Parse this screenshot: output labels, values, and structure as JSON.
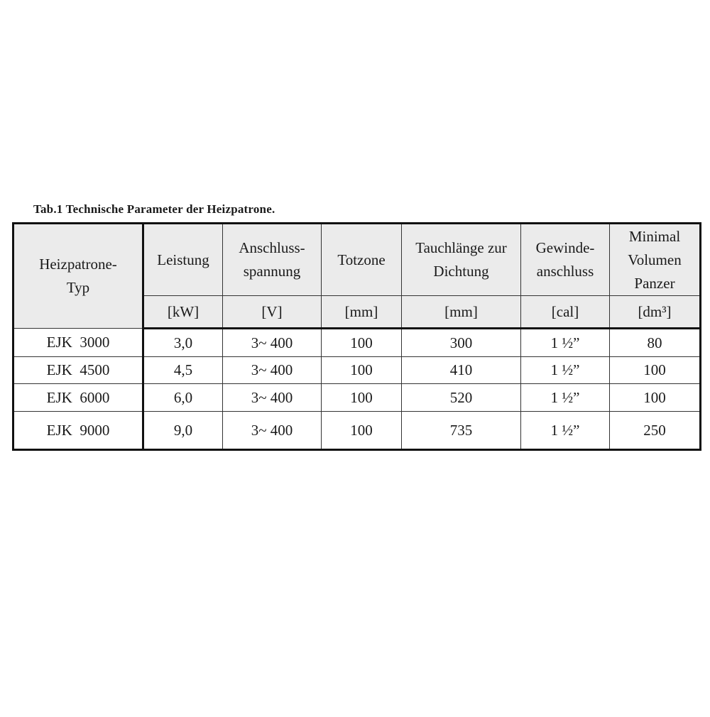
{
  "title": "Tab.1 Technische Parameter der Heizpatrone.",
  "headers": [
    {
      "name": "Heizpatrone-Typ",
      "unit": ""
    },
    {
      "name": "Leistung",
      "unit": "[kW]"
    },
    {
      "name": "Anschluss-spannung",
      "unit": "[V]"
    },
    {
      "name": "Totzone",
      "unit": "[mm]"
    },
    {
      "name": "Tauchlänge zur Dichtung",
      "unit": "[mm]"
    },
    {
      "name": "Gewinde-anschluss",
      "unit": "[cal]"
    },
    {
      "name": "Minimal Volumen Panzer",
      "unit": "[dm³]"
    }
  ],
  "rows": [
    [
      "EJK  3000",
      "3,0",
      "3~ 400",
      "100",
      "300",
      "1 ½”",
      "80"
    ],
    [
      "EJK  4500",
      "4,5",
      "3~ 400",
      "100",
      "410",
      "1 ½”",
      "100"
    ],
    [
      "EJK  6000",
      "6,0",
      "3~ 400",
      "100",
      "520",
      "1 ½”",
      "100"
    ],
    [
      "EJK  9000",
      "9,0",
      "3~ 400",
      "100",
      "735",
      "1 ½”",
      "250"
    ]
  ]
}
